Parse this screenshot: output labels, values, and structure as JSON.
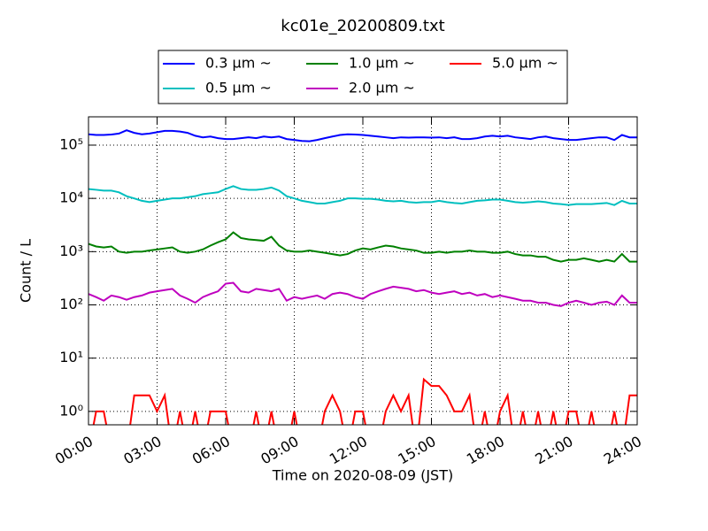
{
  "chart_data": {
    "type": "line",
    "title": "kc01e_20200809.txt",
    "x_label": "Time on 2020-08-09 (JST)",
    "y_label": "Count / L",
    "log_y": true,
    "grid": true,
    "legend_position": "top",
    "xlim": [
      0,
      1440
    ],
    "ylim": [
      0.56,
      340000
    ],
    "xticks": [
      {
        "value": 0,
        "label": "00:00"
      },
      {
        "value": 180,
        "label": "03:00"
      },
      {
        "value": 360,
        "label": "06:00"
      },
      {
        "value": 540,
        "label": "09:00"
      },
      {
        "value": 720,
        "label": "12:00"
      },
      {
        "value": 900,
        "label": "15:00"
      },
      {
        "value": 1080,
        "label": "18:00"
      },
      {
        "value": 1260,
        "label": "21:00"
      },
      {
        "value": 1440,
        "label": "24:00"
      }
    ],
    "yticks": [
      {
        "value": 1,
        "label": "10⁰"
      },
      {
        "value": 10,
        "label": "10¹"
      },
      {
        "value": 100,
        "label": "10²"
      },
      {
        "value": 1000,
        "label": "10³"
      },
      {
        "value": 10000,
        "label": "10⁴"
      },
      {
        "value": 100000,
        "label": "10⁵"
      }
    ],
    "x": [
      0,
      20,
      40,
      60,
      80,
      100,
      120,
      140,
      160,
      180,
      200,
      220,
      240,
      260,
      280,
      300,
      320,
      340,
      360,
      380,
      400,
      420,
      440,
      460,
      480,
      500,
      520,
      540,
      560,
      580,
      600,
      620,
      640,
      660,
      680,
      700,
      720,
      740,
      760,
      780,
      800,
      820,
      840,
      860,
      880,
      900,
      920,
      940,
      960,
      980,
      1000,
      1020,
      1040,
      1060,
      1080,
      1100,
      1120,
      1140,
      1160,
      1180,
      1200,
      1220,
      1240,
      1260,
      1280,
      1300,
      1320,
      1340,
      1360,
      1380,
      1400,
      1420,
      1440
    ],
    "series": [
      {
        "name": "0.3 μm ~",
        "color": "#0000ff",
        "values": [
          160000,
          155000,
          155000,
          158000,
          165000,
          190000,
          170000,
          160000,
          165000,
          175000,
          185000,
          185000,
          180000,
          170000,
          150000,
          140000,
          145000,
          135000,
          130000,
          130000,
          135000,
          140000,
          135000,
          145000,
          140000,
          145000,
          130000,
          125000,
          120000,
          118000,
          125000,
          135000,
          145000,
          155000,
          160000,
          158000,
          155000,
          150000,
          145000,
          140000,
          135000,
          140000,
          138000,
          140000,
          140000,
          138000,
          140000,
          135000,
          140000,
          130000,
          130000,
          135000,
          145000,
          150000,
          145000,
          150000,
          140000,
          135000,
          130000,
          140000,
          145000,
          135000,
          130000,
          125000,
          125000,
          130000,
          135000,
          140000,
          140000,
          125000,
          155000,
          140000,
          140000
        ]
      },
      {
        "name": "0.5 μm ~",
        "color": "#00bfbf",
        "values": [
          15000,
          14500,
          14000,
          14000,
          13000,
          11000,
          10000,
          9000,
          8500,
          9000,
          9500,
          10000,
          10000,
          10500,
          11000,
          12000,
          12500,
          13000,
          15000,
          17000,
          15000,
          14500,
          14500,
          15000,
          16000,
          14000,
          11000,
          10000,
          9000,
          8500,
          8000,
          8000,
          8500,
          9000,
          10000,
          10000,
          9800,
          9800,
          9500,
          9000,
          8800,
          9000,
          8500,
          8300,
          8500,
          8500,
          9000,
          8500,
          8200,
          8000,
          8500,
          9000,
          9200,
          9500,
          9500,
          9000,
          8500,
          8300,
          8500,
          8800,
          8500,
          8000,
          7800,
          7500,
          7800,
          7800,
          7800,
          8000,
          8200,
          7500,
          9000,
          8000,
          8000
        ]
      },
      {
        "name": "1.0 μm ~",
        "color": "#008000",
        "values": [
          1400,
          1250,
          1200,
          1250,
          1000,
          950,
          1000,
          1000,
          1050,
          1100,
          1150,
          1200,
          1000,
          950,
          1000,
          1100,
          1300,
          1500,
          1700,
          2300,
          1800,
          1700,
          1650,
          1600,
          1900,
          1300,
          1050,
          1000,
          1000,
          1050,
          1000,
          950,
          900,
          850,
          900,
          1050,
          1150,
          1100,
          1200,
          1300,
          1250,
          1150,
          1100,
          1050,
          950,
          950,
          1000,
          950,
          1000,
          1000,
          1050,
          1000,
          1000,
          950,
          950,
          1000,
          900,
          850,
          850,
          800,
          800,
          700,
          650,
          700,
          700,
          750,
          700,
          650,
          700,
          650,
          900,
          650,
          650
        ]
      },
      {
        "name": "2.0 μm ~",
        "color": "#bf00bf",
        "values": [
          160,
          140,
          120,
          150,
          140,
          125,
          140,
          150,
          170,
          180,
          190,
          200,
          150,
          130,
          110,
          140,
          160,
          180,
          250,
          260,
          180,
          170,
          200,
          190,
          180,
          200,
          120,
          140,
          130,
          140,
          150,
          130,
          160,
          170,
          160,
          140,
          130,
          160,
          180,
          200,
          220,
          210,
          200,
          180,
          190,
          170,
          160,
          170,
          180,
          160,
          170,
          150,
          160,
          140,
          150,
          140,
          130,
          120,
          120,
          110,
          110,
          100,
          95,
          110,
          120,
          110,
          100,
          110,
          115,
          100,
          150,
          110,
          110
        ]
      },
      {
        "name": "5.0 μm ~",
        "color": "#ff0000",
        "values": [
          0,
          1,
          1,
          0,
          0,
          0,
          2,
          2,
          2,
          1,
          2,
          0,
          1,
          0,
          1,
          0,
          1,
          1,
          1,
          0,
          0,
          0,
          1,
          0,
          1,
          0,
          0,
          1,
          0,
          0,
          0,
          1,
          2,
          1,
          0,
          1,
          1,
          0,
          0,
          1,
          2,
          1,
          2,
          0,
          4,
          3,
          3,
          2,
          1,
          1,
          2,
          0,
          1,
          0,
          1,
          2,
          0,
          1,
          0,
          1,
          0,
          1,
          0,
          1,
          1,
          0,
          1,
          0,
          0,
          1,
          0,
          2,
          2
        ]
      }
    ]
  }
}
